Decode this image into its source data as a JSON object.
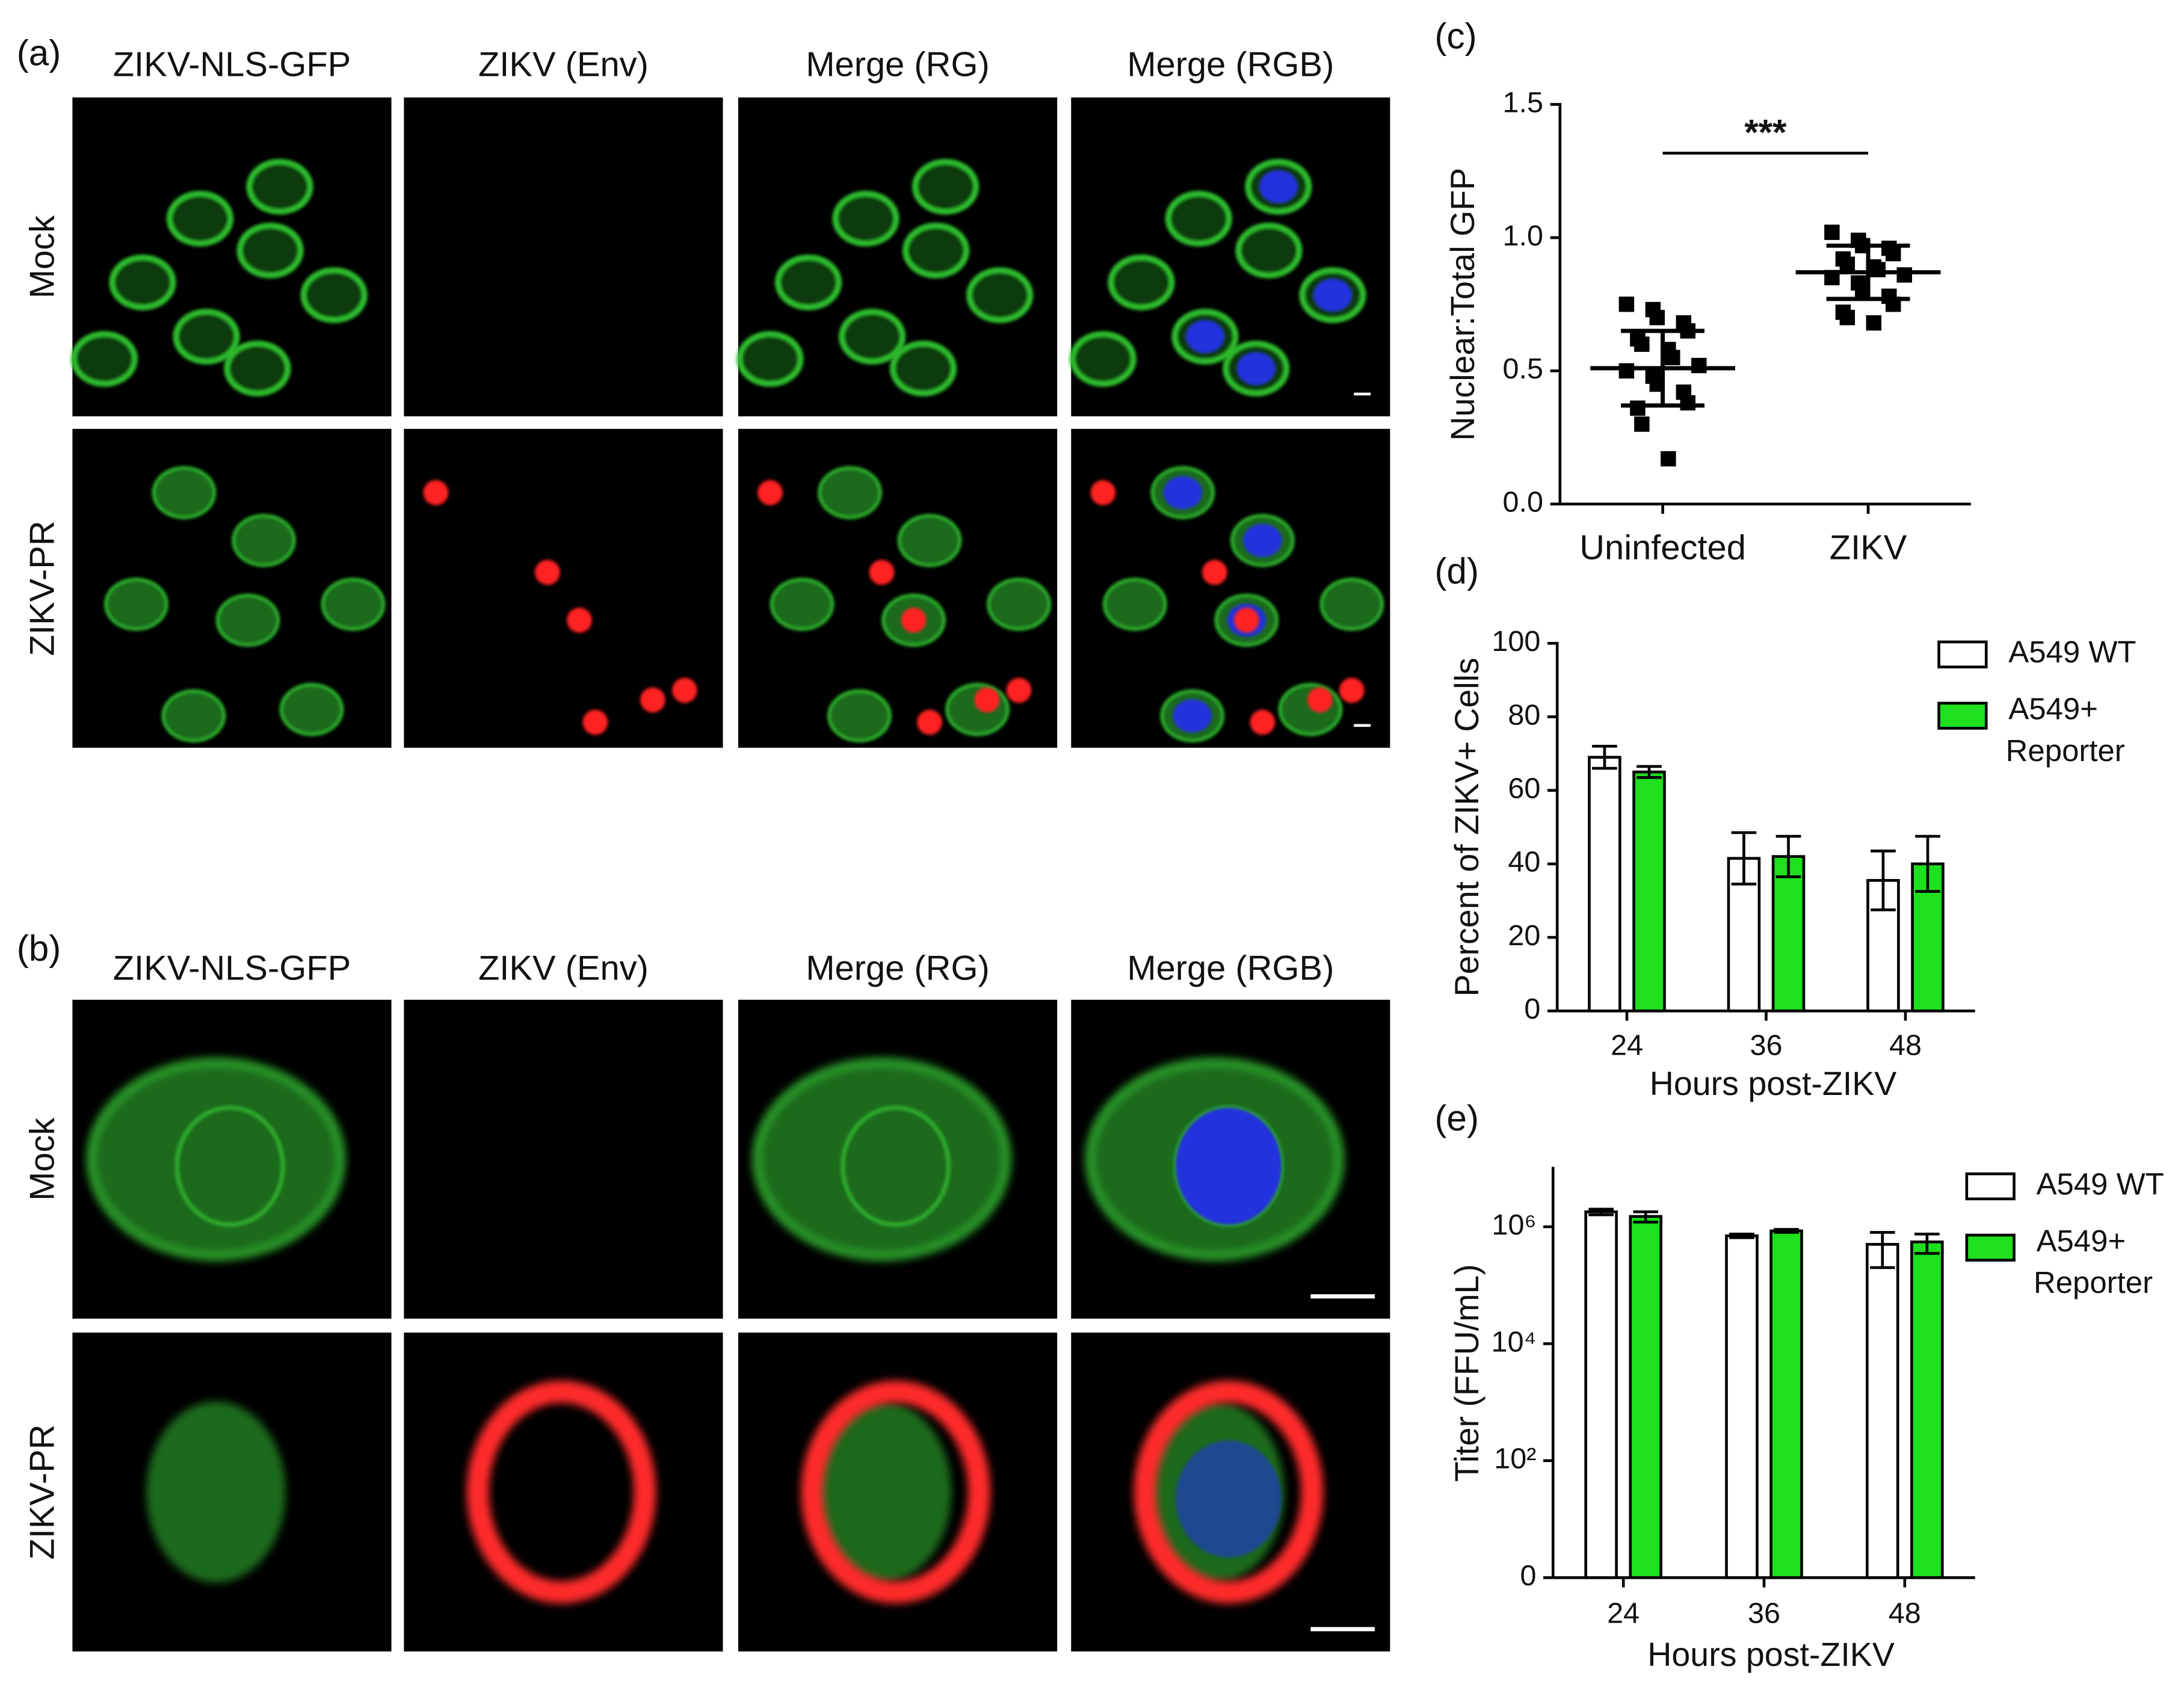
{
  "figure": {
    "panels": [
      {
        "label": "(a)",
        "columns": [
          "ZIKV-NLS-GFP",
          "ZIKV (Env)",
          "Merge (RG)",
          "Merge (RGB)"
        ],
        "rows": [
          "Mock",
          "ZIKV-PR"
        ]
      },
      {
        "label": "(b)",
        "columns": [
          "ZIKV-NLS-GFP",
          "ZIKV (Env)",
          "Merge (RG)",
          "Merge (RGB)"
        ],
        "rows": [
          "Mock",
          "ZIKV-PR"
        ]
      }
    ]
  },
  "chart_data": [
    {
      "type": "dotplot",
      "panel_label": "(c)",
      "ylabel": "Nuclear:Total GFP",
      "categories": [
        "Uninfected",
        "ZIKV"
      ],
      "points": [
        [
          0.75,
          0.73,
          0.7,
          0.68,
          0.65,
          0.62,
          0.6,
          0.58,
          0.55,
          0.52,
          0.5,
          0.48,
          0.45,
          0.42,
          0.38,
          0.36,
          0.3,
          0.17
        ],
        [
          1.02,
          0.99,
          0.97,
          0.96,
          0.94,
          0.92,
          0.9,
          0.89,
          0.88,
          0.86,
          0.85,
          0.83,
          0.8,
          0.78,
          0.75,
          0.72,
          0.7,
          0.68
        ]
      ],
      "means": [
        0.51,
        0.87
      ],
      "errors": [
        0.14,
        0.1
      ],
      "annotation": "***",
      "ylim": [
        0,
        1.5
      ],
      "yticks": [
        {
          "value": 0,
          "label": "0.0"
        },
        0.5,
        {
          "value": 1,
          "label": "1.0"
        },
        1.5
      ]
    },
    {
      "type": "bar",
      "panel_label": "(d)",
      "xlabel": "Hours post-ZIKV",
      "ylabel": "Percent of ZIKV+ Cells",
      "categories": [
        "24",
        "36",
        "48"
      ],
      "series": [
        {
          "name": "A549 WT",
          "color": "#ffffff",
          "values": [
            69,
            41.5,
            35.5
          ],
          "errors": [
            3,
            7,
            8
          ]
        },
        {
          "name": "A549+ Reporter",
          "color": "#1ee01e",
          "values": [
            65,
            42,
            40
          ],
          "errors": [
            1.5,
            5.5,
            7.5
          ]
        }
      ],
      "ylim": [
        0,
        100
      ],
      "yticks": [
        0,
        20,
        40,
        60,
        80,
        100
      ],
      "legend": "outside-right"
    },
    {
      "type": "bar",
      "panel_label": "(e)",
      "xlabel": "Hours post-ZIKV",
      "ylabel": "Titer (FFU/mL)",
      "categories": [
        "24",
        "36",
        "48"
      ],
      "log_scale": true,
      "series": [
        {
          "name": "A549 WT",
          "color": "#ffffff",
          "values": [
            1800000,
            700000,
            500000
          ],
          "errors": [
            200000,
            50000,
            300000
          ]
        },
        {
          "name": "A549+ Reporter",
          "color": "#1ee01e",
          "values": [
            1500000,
            850000,
            550000
          ],
          "errors": [
            300000,
            50000,
            200000
          ]
        }
      ],
      "ylim": [
        1,
        10000000
      ],
      "yticks": [
        {
          "value": 1,
          "label": "0"
        },
        {
          "value": 100,
          "label": "10²"
        },
        {
          "value": 10000,
          "label": "10⁴"
        },
        {
          "value": 1000000,
          "label": "10⁶"
        }
      ],
      "legend": "outside-right"
    }
  ]
}
